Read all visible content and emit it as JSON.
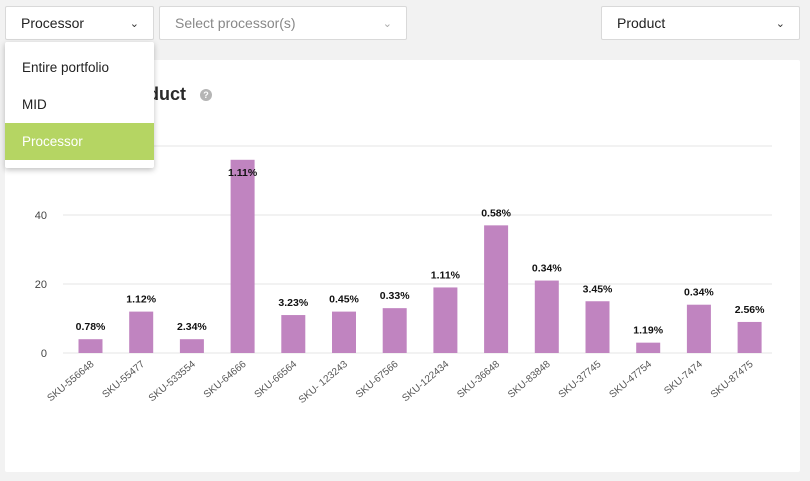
{
  "filters": {
    "processor_dropdown": {
      "value": "Processor"
    },
    "processor_select": {
      "placeholder": "Select processor(s)"
    },
    "product_dropdown": {
      "value": "Product"
    }
  },
  "dropdown_menu": {
    "items": [
      {
        "label": "Entire portfolio",
        "selected": false
      },
      {
        "label": "MID",
        "selected": false
      },
      {
        "label": "Processor",
        "selected": true
      }
    ]
  },
  "card": {
    "title": "duct",
    "help_icon": "?"
  },
  "colors": {
    "bar": "#c084c0",
    "selected_menu": "#b5d563",
    "grid": "#e6e6e6"
  },
  "icons": {
    "dropdown": "chevron-down-icon",
    "help": "question-icon"
  },
  "chart_data": {
    "type": "bar",
    "categories": [
      "SKU-556648",
      "SKU-55477",
      "SKU-533554",
      "SKU-64666",
      "SKU-66564",
      "SKU- 123243",
      "SKU-67566",
      "SKU-122434",
      "SKU-36648",
      "SKU-83848",
      "SKU-37745",
      "SKU-47754",
      "SKU-7474",
      "SKU-87475"
    ],
    "values": [
      4,
      12,
      4,
      56,
      11,
      12,
      13,
      19,
      37,
      21,
      15,
      3,
      14,
      9
    ],
    "data_labels": [
      "0.78%",
      "1.12%",
      "2.34%",
      "1.11%",
      "3.23%",
      "0.45%",
      "0.33%",
      "1.11%",
      "0.58%",
      "0.34%",
      "3.45%",
      "1.19%",
      "0.34%",
      "2.56%"
    ],
    "yticks": [
      0,
      20,
      40
    ],
    "ylim": [
      0,
      60
    ],
    "grid": true
  }
}
